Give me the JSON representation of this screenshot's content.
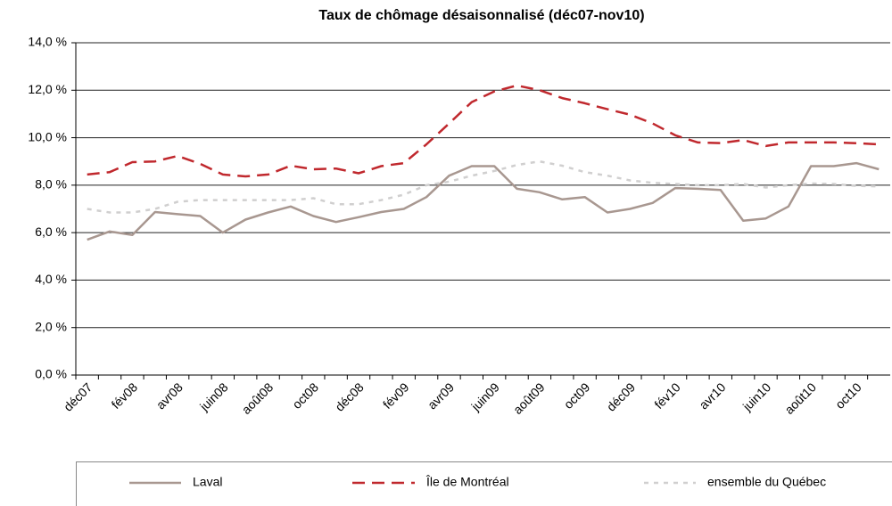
{
  "chart_data": {
    "type": "line",
    "title": "Taux de chômage désaisonnalisé (déc07-nov10)",
    "categories": [
      "déc07",
      null,
      "fév08",
      null,
      "avr08",
      null,
      "juin08",
      null,
      "août08",
      null,
      "oct08",
      null,
      "déc08",
      null,
      "fév09",
      null,
      "avr09",
      null,
      "juin09",
      null,
      "août09",
      null,
      "oct09",
      null,
      "déc09",
      null,
      "fév10",
      null,
      "avr10",
      null,
      "juin10",
      null,
      "août10",
      null,
      "oct10",
      null
    ],
    "series": [
      {
        "name": "Laval",
        "color": "#a89790",
        "dash": "solid",
        "values": [
          5.7,
          6.05,
          5.9,
          6.87,
          6.78,
          6.7,
          6.0,
          6.55,
          6.85,
          7.1,
          6.7,
          6.45,
          6.65,
          6.87,
          7.0,
          7.5,
          8.4,
          8.8,
          8.8,
          7.85,
          7.7,
          7.4,
          7.5,
          6.85,
          7.0,
          7.25,
          7.88,
          7.85,
          7.8,
          6.5,
          6.6,
          7.1,
          8.8,
          8.8,
          8.93,
          8.67
        ]
      },
      {
        "name": "Île de Montréal",
        "color": "#c0282d",
        "dash": "dashed",
        "values": [
          8.45,
          8.55,
          8.97,
          9.0,
          9.23,
          8.9,
          8.45,
          8.37,
          8.45,
          8.82,
          8.67,
          8.7,
          8.5,
          8.8,
          8.93,
          9.72,
          10.6,
          11.5,
          11.95,
          12.2,
          12.0,
          11.67,
          11.45,
          11.2,
          10.97,
          10.6,
          10.1,
          9.8,
          9.77,
          9.9,
          9.65,
          9.8,
          9.8,
          9.8,
          9.77,
          9.72
        ]
      },
      {
        "name": "ensemble du Québec",
        "color": "#d0cfcf",
        "dash": "dotted",
        "values": [
          7.0,
          6.85,
          6.85,
          7.0,
          7.3,
          7.37,
          7.37,
          7.37,
          7.37,
          7.37,
          7.45,
          7.2,
          7.2,
          7.37,
          7.6,
          8.0,
          8.15,
          8.4,
          8.6,
          8.85,
          9.0,
          8.82,
          8.55,
          8.4,
          8.2,
          8.1,
          8.05,
          8.0,
          8.0,
          8.05,
          7.9,
          8.0,
          8.07,
          8.05,
          7.97,
          7.95
        ]
      }
    ],
    "ylim": [
      0,
      14
    ],
    "yticks": [
      {
        "value": 0,
        "label": "0,0 %"
      },
      {
        "value": 2,
        "label": "2,0 %"
      },
      {
        "value": 4,
        "label": "4,0 %"
      },
      {
        "value": 6,
        "label": "6,0 %"
      },
      {
        "value": 8,
        "label": "8,0 %"
      },
      {
        "value": 10,
        "label": "10,0 %"
      },
      {
        "value": 12,
        "label": "12,0 %"
      },
      {
        "value": 14,
        "label": "14,0 %"
      }
    ],
    "grid": true,
    "legend": "bottom"
  }
}
